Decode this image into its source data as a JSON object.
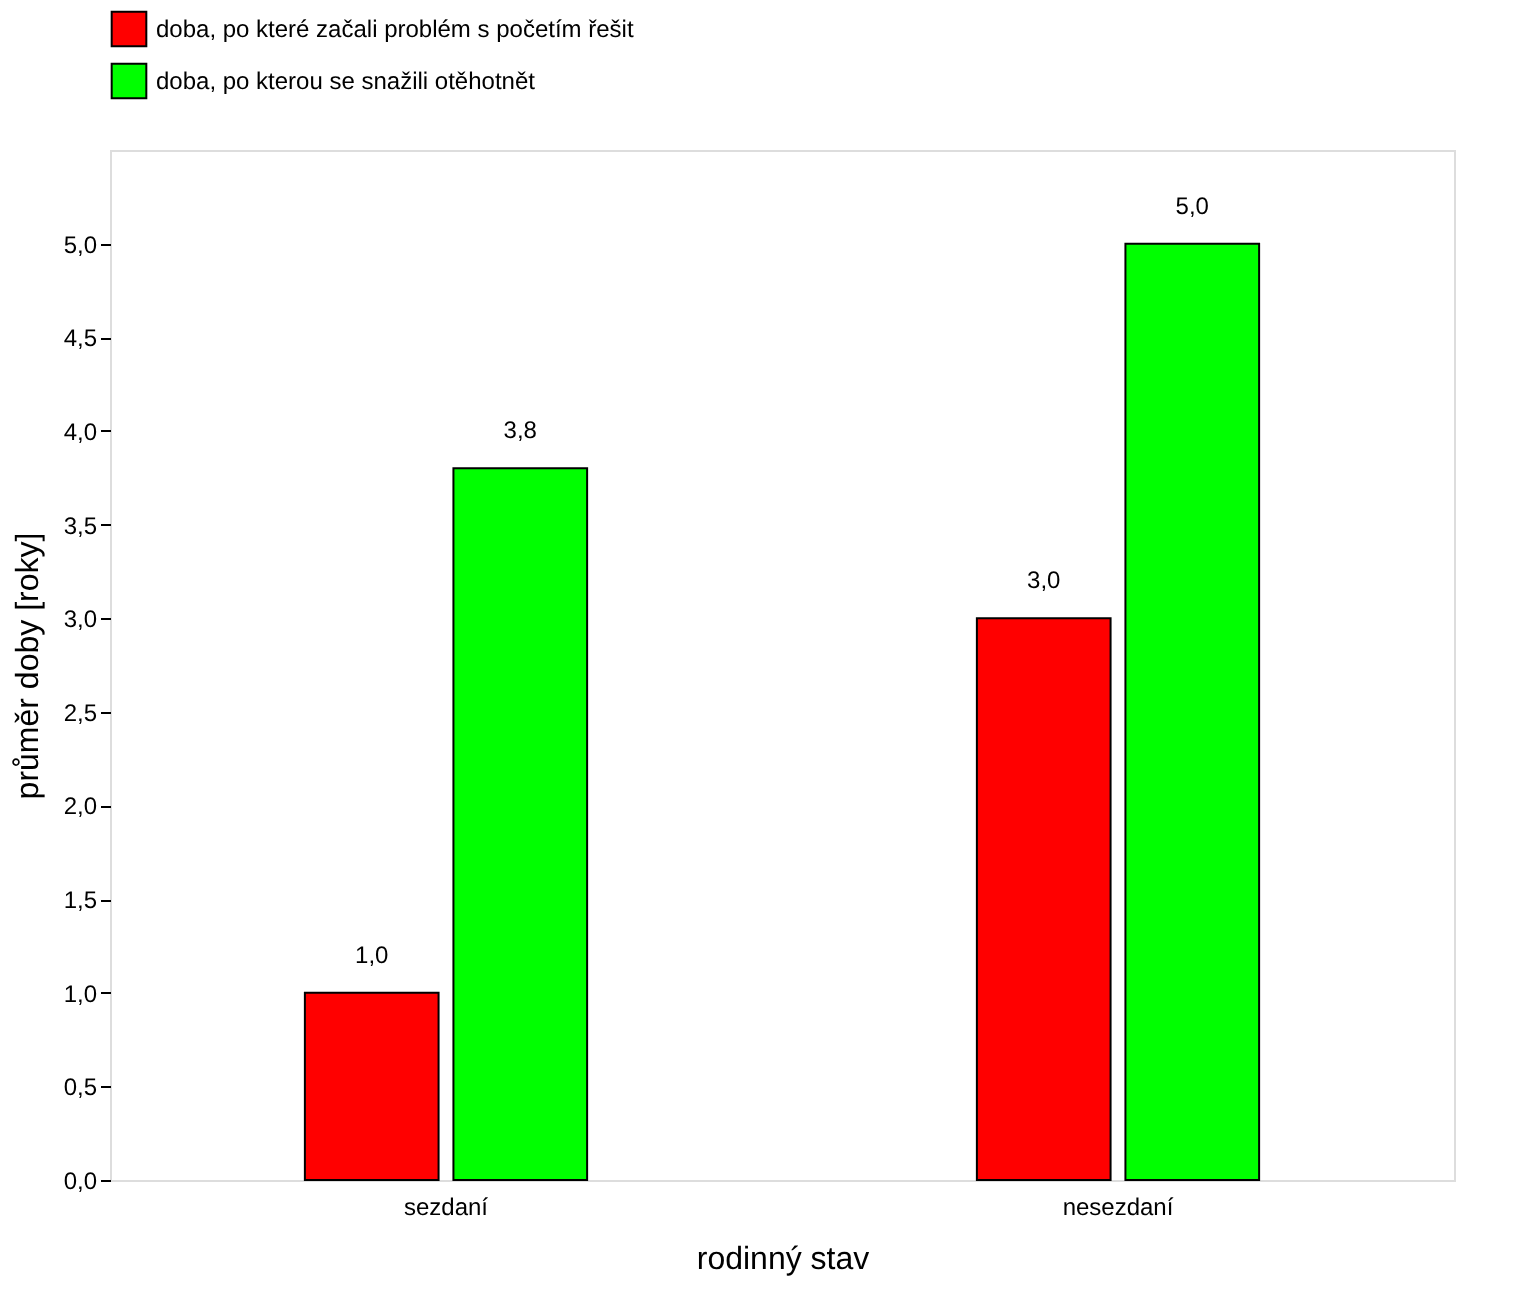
{
  "chart_data": {
    "type": "bar",
    "xlabel": "rodinný stav",
    "ylabel": "průměr doby [roky]",
    "categories": [
      "sezdaní",
      "nesezdaní"
    ],
    "series": [
      {
        "name": "doba, po které začali problém s početím řešit",
        "color": "#ff0000",
        "values": [
          1.0,
          3.0
        ],
        "value_labels": [
          "1,0",
          "3,0"
        ]
      },
      {
        "name": "doba, po kterou se snažili otěhotnět",
        "color": "#00ff00",
        "values": [
          3.8,
          5.0
        ],
        "value_labels": [
          "3,8",
          "5,0"
        ]
      }
    ],
    "ylim": [
      0,
      5.5
    ],
    "yticks": [
      {
        "value": 0,
        "label": "0,0"
      },
      {
        "value": 0.5,
        "label": "0,5"
      },
      {
        "value": 1,
        "label": "1,0"
      },
      {
        "value": 1.5,
        "label": "1,5"
      },
      {
        "value": 2,
        "label": "2,0"
      },
      {
        "value": 2.5,
        "label": "2,5"
      },
      {
        "value": 3,
        "label": "3,0"
      },
      {
        "value": 3.5,
        "label": "3,5"
      },
      {
        "value": 4,
        "label": "4,0"
      },
      {
        "value": 4.5,
        "label": "4,5"
      },
      {
        "value": 5,
        "label": "5,0"
      }
    ],
    "grid": false,
    "legend": "top left"
  }
}
